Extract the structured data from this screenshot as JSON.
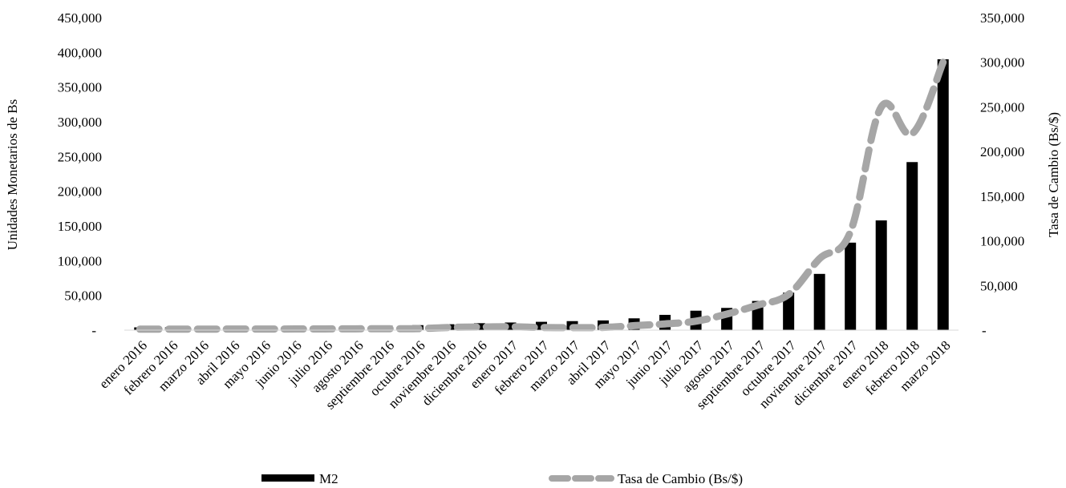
{
  "chart_data": {
    "type": "bar",
    "categories": [
      "enero 2016",
      "febrero 2016",
      "marzo 2016",
      "abril 2016",
      "mayo 2016",
      "junio 2016",
      "julio 2016",
      "agosto 2016",
      "septiembre 2016",
      "octubre 2016",
      "noviembre 2016",
      "diciembre 2016",
      "enero 2017",
      "febrero 2017",
      "marzo 2017",
      "abril 2017",
      "mayo 2017",
      "junio 2017",
      "julio 2017",
      "agosto 2017",
      "septiembre 2017",
      "octubre 2017",
      "noviembre 2017",
      "diciembre 2017",
      "enero 2018",
      "febrero 2018",
      "marzo 2018"
    ],
    "series": [
      {
        "name": "M2",
        "type": "bar",
        "axis": "left",
        "color": "#000000",
        "values": [
          4000,
          4200,
          4300,
          4500,
          4800,
          5000,
          5400,
          5900,
          6500,
          7200,
          8500,
          10000,
          11000,
          12000,
          13000,
          14000,
          17000,
          22000,
          28000,
          32000,
          42000,
          54000,
          81000,
          126000,
          158000,
          242000,
          390000
        ]
      },
      {
        "name": "Tasa de Cambio (Bs/$)",
        "type": "line",
        "axis": "right",
        "color": "#a6a6a6",
        "dash": "dashed",
        "values": [
          1100,
          1100,
          1100,
          1200,
          1200,
          1300,
          1400,
          1500,
          1600,
          1700,
          3000,
          3500,
          3800,
          3000,
          2800,
          3000,
          5000,
          7000,
          10000,
          18000,
          28000,
          40000,
          80000,
          110000,
          250000,
          220000,
          300000
        ]
      }
    ],
    "ylabel": "Unidades Monetarios de Bs",
    "y2label": "Tasa de Cambio (Bs/$)",
    "ylim": [
      0,
      450000
    ],
    "y2lim": [
      0,
      350000
    ],
    "yticks": [
      "-",
      "50,000",
      "100,000",
      "150,000",
      "200,000",
      "250,000",
      "300,000",
      "350,000",
      "400,000",
      "450,000"
    ],
    "y2ticks": [
      "-",
      "50,000",
      "100,000",
      "150,000",
      "200,000",
      "250,000",
      "300,000",
      "350,000"
    ],
    "grid": false,
    "legend": "bottom"
  },
  "legend": {
    "m2": "M2",
    "tasa": "Tasa de Cambio (Bs/$)"
  }
}
